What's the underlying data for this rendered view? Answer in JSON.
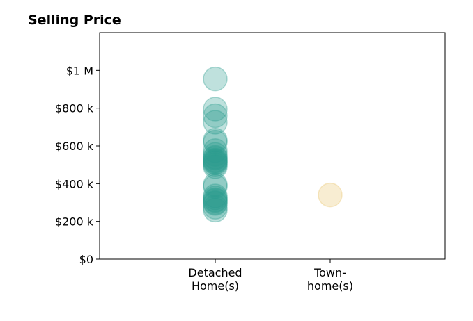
{
  "chart_data": {
    "type": "scatter",
    "title": "Selling Price",
    "xlabel": "",
    "ylabel": "",
    "categories": [
      [
        "Detached",
        "Home(s)"
      ],
      [
        "Town-",
        "home(s)"
      ]
    ],
    "ylim": [
      0,
      1200000
    ],
    "yticks": [
      {
        "value": 0,
        "label": "$0"
      },
      {
        "value": 200000,
        "label": "$200 k"
      },
      {
        "value": 400000,
        "label": "$400 k"
      },
      {
        "value": 600000,
        "label": "$600 k"
      },
      {
        "value": 800000,
        "label": "$800 k"
      },
      {
        "value": 1000000,
        "label": "$1 M"
      }
    ],
    "grid": false,
    "series": [
      {
        "category": 0,
        "color": "#2a9d8f",
        "opacity": 0.3,
        "values": [
          955000,
          795000,
          760000,
          725000,
          630000,
          620000,
          575000,
          555000,
          540000,
          535000,
          525000,
          520000,
          515000,
          510000,
          500000,
          490000,
          395000,
          385000,
          335000,
          325000,
          315000,
          310000,
          300000,
          295000,
          275000,
          260000
        ]
      },
      {
        "category": 1,
        "color": "#e9c46a",
        "opacity": 0.3,
        "values": [
          340000
        ]
      }
    ]
  }
}
